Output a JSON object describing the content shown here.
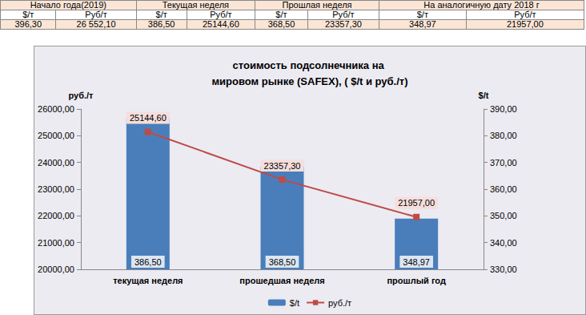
{
  "table": {
    "header": [
      "Начало года(2019)",
      "Текущая неделя",
      "Прошлая неделя",
      "На аналогичную дату 2018 г"
    ],
    "subheader": [
      "$/т",
      "Руб/т",
      "$/т",
      "Руб/т",
      "$/т",
      "Руб/т",
      "$/т",
      "Руб/т"
    ],
    "rows": [
      [
        "396,30",
        "26 552,10",
        "386,50",
        "25144,60",
        "368,50",
        "23357,30",
        "348,97",
        "21957,00"
      ]
    ]
  },
  "chart_data": {
    "type": "bar",
    "title": "стоимость подсолнечника на мировом рынке (SAFEX), ( $/t и руб./т)",
    "y_label": "руб./т",
    "y2_label": "$/t",
    "categories": [
      "текущая неделя",
      "прошедшая неделя",
      "прошлый год"
    ],
    "series": [
      {
        "name": "$/t",
        "type": "bar",
        "axis": "y2",
        "color": "#4a7ebb",
        "values": [
          386.5,
          368.5,
          348.97
        ],
        "value_labels": [
          "386,50",
          "368,50",
          "348,97"
        ]
      },
      {
        "name": "руб./т",
        "type": "line",
        "color": "#be4b48",
        "marker": "square",
        "values": [
          25144.6,
          23357.3,
          21957.0
        ],
        "value_labels": [
          "25144,60",
          "23357,30",
          "21957,00"
        ]
      }
    ],
    "ylim": [
      20000,
      26000
    ],
    "yticks": [
      {
        "value": 20000,
        "label": "20000,00"
      },
      {
        "value": 21000,
        "label": "21000,00"
      },
      {
        "value": 22000,
        "label": "22000,00"
      },
      {
        "value": 23000,
        "label": "23000,00"
      },
      {
        "value": 24000,
        "label": "24000,00"
      },
      {
        "value": 25000,
        "label": "25000,00"
      },
      {
        "value": 26000,
        "label": "26000,00"
      }
    ],
    "y2lim": [
      330,
      390
    ],
    "y2ticks": [
      {
        "value": 330,
        "label": "330,00"
      },
      {
        "value": 340,
        "label": "340,00"
      },
      {
        "value": 350,
        "label": "350,00"
      },
      {
        "value": 360,
        "label": "360,00"
      },
      {
        "value": 370,
        "label": "370,00"
      },
      {
        "value": 380,
        "label": "380,00"
      },
      {
        "value": 390,
        "label": "390,00"
      }
    ],
    "legend": "bottom",
    "data_labels": true,
    "grid": false
  }
}
